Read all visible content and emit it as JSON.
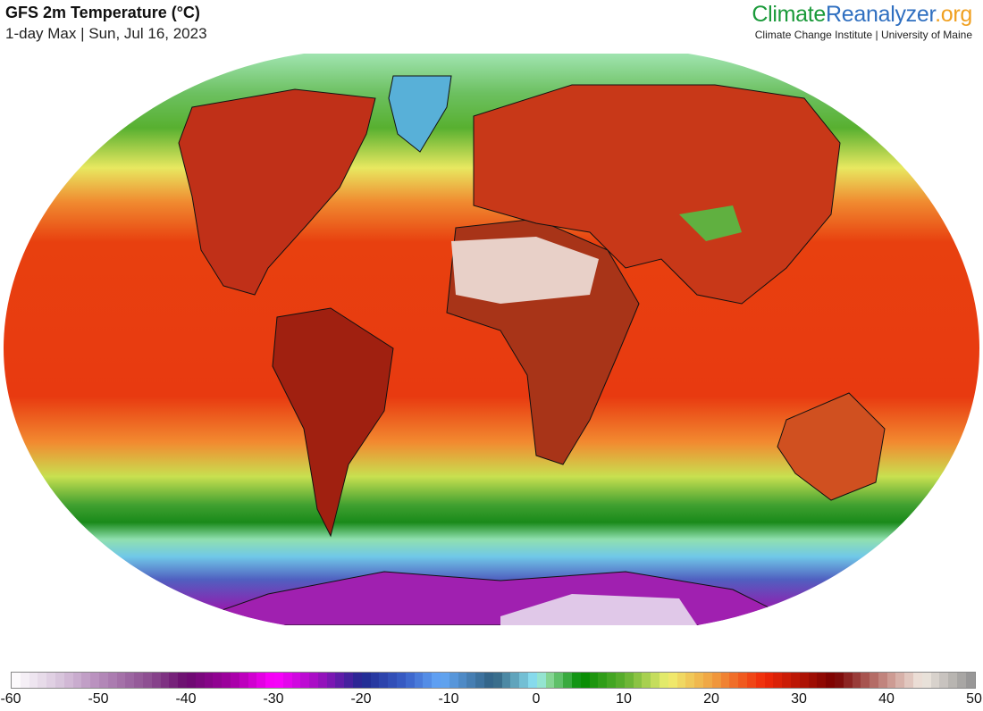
{
  "header": {
    "title": "GFS 2m Temperature (°C)",
    "subtitle": "1-day Max | Sun, Jul 16, 2023"
  },
  "brand": {
    "part1": "Climate",
    "part2": "Reanalyzer",
    "part3": ".org",
    "institution": "Climate Change Institute | University of Maine",
    "colors": {
      "green": "#1a9a3a",
      "blue": "#2f6fc0",
      "orange": "#f0a020"
    }
  },
  "colorbar": {
    "min": -60,
    "max": 50,
    "ticks": [
      "-60",
      "-50",
      "-40",
      "-30",
      "-20",
      "-10",
      "0",
      "10",
      "20",
      "30",
      "40",
      "50"
    ],
    "stops": [
      {
        "value": -60,
        "color": "#ffffff"
      },
      {
        "value": -55,
        "color": "#dccbe0"
      },
      {
        "value": -50,
        "color": "#b68cbb"
      },
      {
        "value": -44,
        "color": "#8a4a8e"
      },
      {
        "value": -40,
        "color": "#6a0a6e"
      },
      {
        "value": -35,
        "color": "#a000a0"
      },
      {
        "value": -30,
        "color": "#ff00ff"
      },
      {
        "value": -25,
        "color": "#a010c0"
      },
      {
        "value": -20,
        "color": "#202890"
      },
      {
        "value": -15,
        "color": "#3a60c8"
      },
      {
        "value": -11,
        "color": "#64a8f8"
      },
      {
        "value": -5,
        "color": "#306080"
      },
      {
        "value": 0,
        "color": "#90e8f8"
      },
      {
        "value": 1,
        "color": "#98e0a8"
      },
      {
        "value": 5,
        "color": "#008a00"
      },
      {
        "value": 10,
        "color": "#60b030"
      },
      {
        "value": 15,
        "color": "#f0f070"
      },
      {
        "value": 20,
        "color": "#f0a040"
      },
      {
        "value": 26,
        "color": "#f02808"
      },
      {
        "value": 34,
        "color": "#780000"
      },
      {
        "value": 40,
        "color": "#c89088"
      },
      {
        "value": 44,
        "color": "#f0e8e0"
      },
      {
        "value": 50,
        "color": "#909090"
      }
    ]
  }
}
